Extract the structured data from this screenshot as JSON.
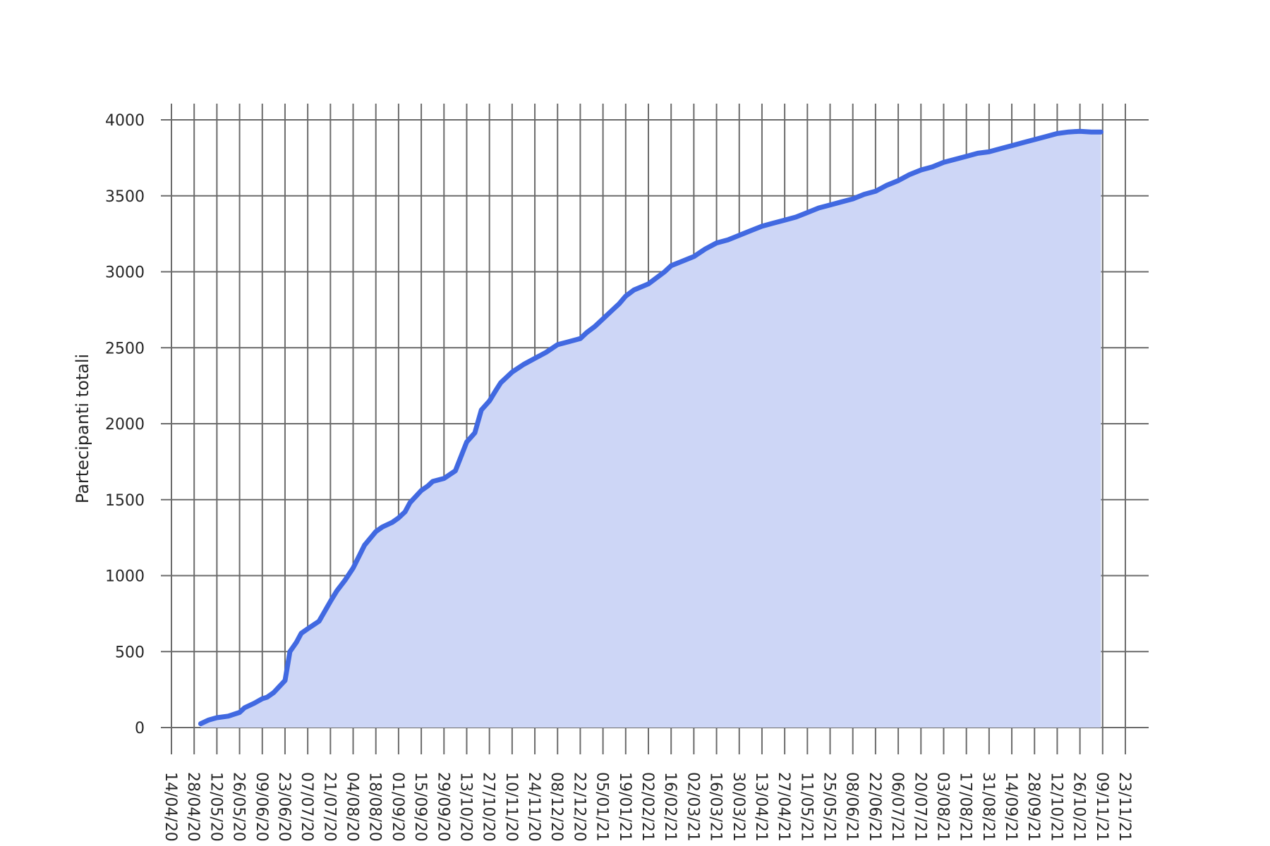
{
  "chart_data": {
    "type": "area",
    "title": "",
    "xlabel": "",
    "ylabel": "Partecipanti totali",
    "grid": true,
    "legend": "none",
    "colors": {
      "line": "#4169e1",
      "fill": "#cdd6f6",
      "grid": "#6b6b6b"
    },
    "ylim": [
      0,
      4000
    ],
    "yticks": [
      0,
      500,
      1000,
      1500,
      2000,
      2500,
      3000,
      3500,
      4000
    ],
    "xlim": [
      "2020-04-14",
      "2021-11-23"
    ],
    "xticks": [
      {
        "date": "2020-04-14",
        "label": "14/04/20"
      },
      {
        "date": "2020-04-28",
        "label": "28/04/20"
      },
      {
        "date": "2020-05-12",
        "label": "12/05/20"
      },
      {
        "date": "2020-05-26",
        "label": "26/05/20"
      },
      {
        "date": "2020-06-09",
        "label": "09/06/20"
      },
      {
        "date": "2020-06-23",
        "label": "23/06/20"
      },
      {
        "date": "2020-07-07",
        "label": "07/07/20"
      },
      {
        "date": "2020-07-21",
        "label": "21/07/20"
      },
      {
        "date": "2020-08-04",
        "label": "04/08/20"
      },
      {
        "date": "2020-08-18",
        "label": "18/08/20"
      },
      {
        "date": "2020-09-01",
        "label": "01/09/20"
      },
      {
        "date": "2020-09-15",
        "label": "15/09/20"
      },
      {
        "date": "2020-09-29",
        "label": "29/09/20"
      },
      {
        "date": "2020-10-13",
        "label": "13/10/20"
      },
      {
        "date": "2020-10-27",
        "label": "27/10/20"
      },
      {
        "date": "2020-11-10",
        "label": "10/11/20"
      },
      {
        "date": "2020-11-24",
        "label": "24/11/20"
      },
      {
        "date": "2020-12-08",
        "label": "08/12/20"
      },
      {
        "date": "2020-12-22",
        "label": "22/12/20"
      },
      {
        "date": "2021-01-05",
        "label": "05/01/21"
      },
      {
        "date": "2021-01-19",
        "label": "19/01/21"
      },
      {
        "date": "2021-02-02",
        "label": "02/02/21"
      },
      {
        "date": "2021-02-16",
        "label": "16/02/21"
      },
      {
        "date": "2021-03-02",
        "label": "02/03/21"
      },
      {
        "date": "2021-03-16",
        "label": "16/03/21"
      },
      {
        "date": "2021-03-30",
        "label": "30/03/21"
      },
      {
        "date": "2021-04-13",
        "label": "13/04/21"
      },
      {
        "date": "2021-04-27",
        "label": "27/04/21"
      },
      {
        "date": "2021-05-11",
        "label": "11/05/21"
      },
      {
        "date": "2021-05-25",
        "label": "25/05/21"
      },
      {
        "date": "2021-06-08",
        "label": "08/06/21"
      },
      {
        "date": "2021-06-22",
        "label": "22/06/21"
      },
      {
        "date": "2021-07-06",
        "label": "06/07/21"
      },
      {
        "date": "2021-07-20",
        "label": "20/07/21"
      },
      {
        "date": "2021-08-03",
        "label": "03/08/21"
      },
      {
        "date": "2021-08-17",
        "label": "17/08/21"
      },
      {
        "date": "2021-08-31",
        "label": "31/08/21"
      },
      {
        "date": "2021-09-14",
        "label": "14/09/21"
      },
      {
        "date": "2021-09-28",
        "label": "28/09/21"
      },
      {
        "date": "2021-10-12",
        "label": "12/10/21"
      },
      {
        "date": "2021-10-26",
        "label": "26/10/21"
      },
      {
        "date": "2021-11-09",
        "label": "09/11/21"
      },
      {
        "date": "2021-11-23",
        "label": "23/11/21"
      }
    ],
    "series": [
      {
        "x": [
          "2020-05-02",
          "2020-05-07",
          "2020-05-12",
          "2020-05-19",
          "2020-05-26",
          "2020-05-29",
          "2020-06-04",
          "2020-06-09",
          "2020-06-12",
          "2020-06-16",
          "2020-06-23",
          "2020-06-26",
          "2020-06-30",
          "2020-07-03",
          "2020-07-07",
          "2020-07-14",
          "2020-07-21",
          "2020-07-25",
          "2020-07-30",
          "2020-08-04",
          "2020-08-11",
          "2020-08-18",
          "2020-08-22",
          "2020-08-28",
          "2020-09-01",
          "2020-09-05",
          "2020-09-08",
          "2020-09-15",
          "2020-09-19",
          "2020-09-22",
          "2020-09-29",
          "2020-10-06",
          "2020-10-13",
          "2020-10-18",
          "2020-10-22",
          "2020-10-27",
          "2020-10-31",
          "2020-11-03",
          "2020-11-10",
          "2020-11-17",
          "2020-11-24",
          "2020-12-01",
          "2020-12-08",
          "2020-12-15",
          "2020-12-22",
          "2020-12-26",
          "2020-12-31",
          "2021-01-05",
          "2021-01-10",
          "2021-01-15",
          "2021-01-19",
          "2021-01-24",
          "2021-02-02",
          "2021-02-07",
          "2021-02-12",
          "2021-02-16",
          "2021-02-23",
          "2021-03-02",
          "2021-03-09",
          "2021-03-16",
          "2021-03-23",
          "2021-03-30",
          "2021-04-06",
          "2021-04-13",
          "2021-04-20",
          "2021-04-27",
          "2021-05-04",
          "2021-05-11",
          "2021-05-18",
          "2021-05-25",
          "2021-06-01",
          "2021-06-08",
          "2021-06-15",
          "2021-06-22",
          "2021-06-29",
          "2021-07-06",
          "2021-07-13",
          "2021-07-20",
          "2021-07-27",
          "2021-08-03",
          "2021-08-10",
          "2021-08-17",
          "2021-08-24",
          "2021-08-31",
          "2021-09-07",
          "2021-09-14",
          "2021-09-21",
          "2021-09-28",
          "2021-10-05",
          "2021-10-12",
          "2021-10-19",
          "2021-10-26",
          "2021-11-02",
          "2021-11-08"
        ],
        "y": [
          25,
          50,
          65,
          75,
          100,
          130,
          160,
          190,
          200,
          230,
          310,
          500,
          560,
          620,
          650,
          700,
          830,
          900,
          970,
          1050,
          1200,
          1290,
          1320,
          1350,
          1380,
          1420,
          1480,
          1560,
          1590,
          1620,
          1640,
          1690,
          1880,
          1940,
          2090,
          2150,
          2220,
          2270,
          2340,
          2390,
          2430,
          2470,
          2520,
          2540,
          2560,
          2600,
          2640,
          2690,
          2740,
          2790,
          2840,
          2880,
          2920,
          2960,
          3000,
          3040,
          3070,
          3100,
          3150,
          3190,
          3210,
          3240,
          3270,
          3300,
          3320,
          3340,
          3360,
          3390,
          3420,
          3440,
          3460,
          3480,
          3510,
          3530,
          3570,
          3600,
          3640,
          3670,
          3690,
          3720,
          3740,
          3760,
          3780,
          3790,
          3810,
          3830,
          3850,
          3870,
          3890,
          3910,
          3920,
          3925,
          3920,
          3920
        ]
      }
    ]
  }
}
